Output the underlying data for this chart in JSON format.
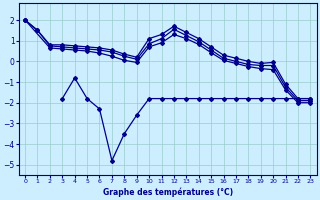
{
  "bg_color": "#cceeff",
  "line_color": "#00008b",
  "grid_color": "#99cccc",
  "title": "Graphe des températures (°C)",
  "xlim": [
    -0.5,
    23.5
  ],
  "ylim": [
    -5.5,
    2.8
  ],
  "yticks": [
    -5,
    -4,
    -3,
    -2,
    -1,
    0,
    1,
    2
  ],
  "xticks": [
    0,
    1,
    2,
    3,
    4,
    5,
    6,
    7,
    8,
    9,
    10,
    11,
    12,
    13,
    14,
    15,
    16,
    17,
    18,
    19,
    20,
    21,
    22,
    23
  ],
  "line1_x": [
    0,
    1,
    2,
    3,
    4,
    5,
    6,
    7,
    8,
    9,
    10,
    11,
    12,
    13,
    14,
    15,
    16,
    17,
    18,
    19,
    20,
    21,
    22,
    23
  ],
  "line1_y": [
    2.0,
    1.5,
    0.8,
    0.8,
    0.75,
    0.7,
    0.65,
    0.55,
    0.35,
    0.2,
    1.1,
    1.3,
    1.7,
    1.4,
    1.1,
    0.7,
    0.3,
    0.15,
    0.0,
    -0.1,
    -0.05,
    -1.1,
    -1.8,
    -1.8
  ],
  "line2_x": [
    0,
    1,
    2,
    3,
    4,
    5,
    6,
    7,
    8,
    9,
    10,
    11,
    12,
    13,
    14,
    15,
    16,
    17,
    18,
    19,
    20,
    21,
    22,
    23
  ],
  "line2_y": [
    2.0,
    1.5,
    0.75,
    0.7,
    0.65,
    0.6,
    0.55,
    0.45,
    0.25,
    0.1,
    0.85,
    1.1,
    1.55,
    1.25,
    0.95,
    0.55,
    0.15,
    0.0,
    -0.15,
    -0.2,
    -0.2,
    -1.25,
    -1.9,
    -1.9
  ],
  "line3_x": [
    0,
    2,
    3,
    4,
    5,
    6,
    7,
    8,
    9,
    10,
    11,
    12,
    13,
    14,
    15,
    16,
    17,
    18,
    19,
    20,
    21,
    22,
    23
  ],
  "line3_y": [
    2.0,
    0.65,
    0.6,
    0.55,
    0.5,
    0.4,
    0.25,
    0.05,
    -0.05,
    0.7,
    0.9,
    1.3,
    1.1,
    0.82,
    0.42,
    0.05,
    -0.1,
    -0.25,
    -0.35,
    -0.4,
    -1.38,
    -2.0,
    -2.0
  ],
  "line4_x": [
    3,
    4,
    5,
    6,
    7,
    8,
    9,
    10,
    11,
    12,
    13,
    14,
    15,
    16,
    17,
    18,
    19,
    20,
    21,
    22,
    23
  ],
  "line4_y": [
    -1.8,
    -0.8,
    -1.8,
    -2.3,
    -4.8,
    -3.5,
    -2.6,
    -1.8,
    -1.8,
    -1.8,
    -1.8,
    -1.8,
    -1.8,
    -1.8,
    -1.8,
    -1.8,
    -1.8,
    -1.8,
    -1.8,
    -1.8,
    -1.8
  ]
}
